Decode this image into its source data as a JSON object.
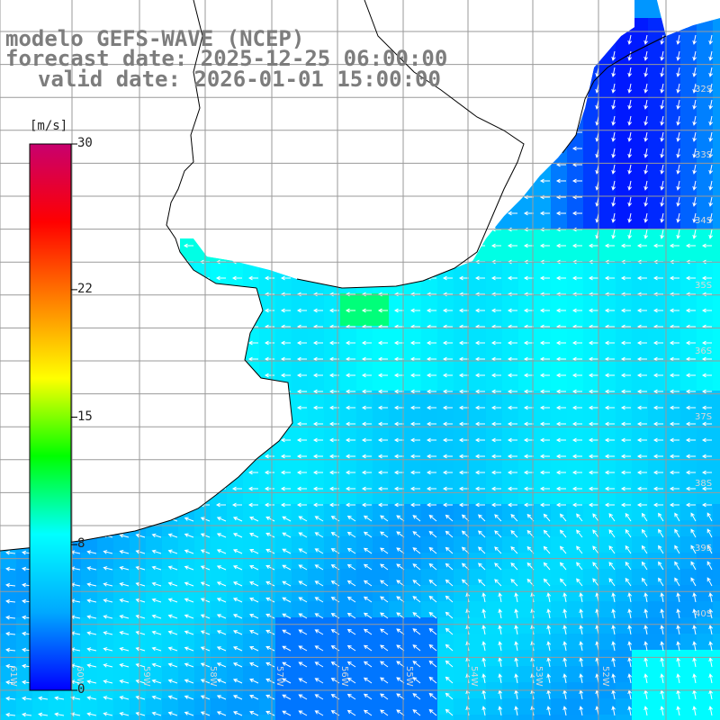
{
  "title": {
    "line1": "modelo GEFS-WAVE (NCEP)",
    "line2": "forecast date: 2025-12-25 06:00:00",
    "line3": "valid date: 2026-01-01 15:00:00"
  },
  "colorbar": {
    "unit": "[m/s]",
    "ticks": [
      {
        "label": "30",
        "value": 30
      },
      {
        "label": "22",
        "value": 22
      },
      {
        "label": "15",
        "value": 15
      },
      {
        "label": "8",
        "value": 8
      },
      {
        "label": "0",
        "value": 0
      }
    ],
    "range": [
      0,
      30
    ],
    "colors": [
      "#0000ff",
      "#00a8ff",
      "#00ffff",
      "#00ff00",
      "#ffff00",
      "#ff8000",
      "#ff0000",
      "#c8006e"
    ]
  },
  "map": {
    "lat_labels": [
      "32S",
      "33S",
      "34S",
      "35S",
      "36S",
      "37S",
      "38S",
      "39S",
      "40S"
    ],
    "lon_labels": [
      "61W",
      "60W",
      "59W",
      "58W",
      "57W",
      "56W",
      "55W",
      "54W",
      "53W",
      "52W"
    ],
    "land_color": "#ffffff",
    "grid_color": "#9a9a9a",
    "coast_color": "#000000"
  }
}
